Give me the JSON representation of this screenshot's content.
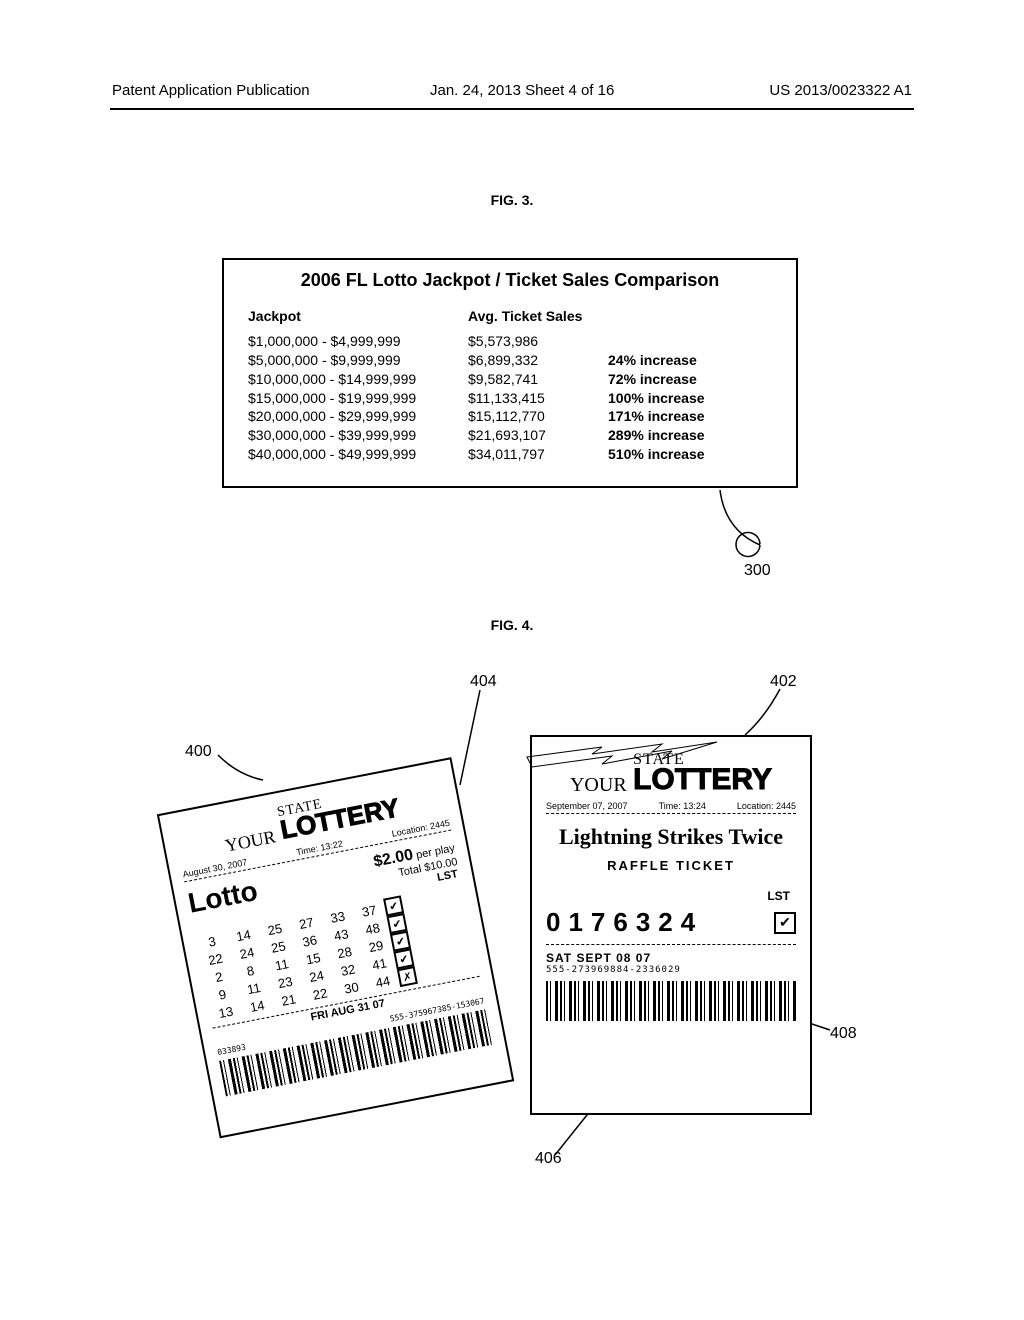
{
  "header": {
    "left": "Patent Application Publication",
    "mid": "Jan. 24, 2013  Sheet 4 of 16",
    "right": "US 2013/0023322 A1"
  },
  "fig3": {
    "label": "FIG. 3.",
    "title": "2006 FL Lotto Jackpot / Ticket Sales Comparison",
    "col1_head": "Jackpot",
    "col2_head": "Avg. Ticket Sales",
    "rows": [
      {
        "j": "$1,000,000 - $4,999,999",
        "s": "$5,573,986",
        "i": ""
      },
      {
        "j": "$5,000,000 - $9,999,999",
        "s": "$6,899,332",
        "i": "24% increase"
      },
      {
        "j": "$10,000,000 - $14,999,999",
        "s": "$9,582,741",
        "i": "72% increase"
      },
      {
        "j": "$15,000,000 - $19,999,999",
        "s": "$11,133,415",
        "i": "100% increase"
      },
      {
        "j": "$20,000,000 - $29,999,999",
        "s": "$15,112,770",
        "i": "171% increase"
      },
      {
        "j": "$30,000,000 - $39,999,999",
        "s": "$21,693,107",
        "i": "289% increase"
      },
      {
        "j": "$40,000,000 - $49,999,999",
        "s": "$34,011,797",
        "i": "510% increase"
      }
    ],
    "ref": "300"
  },
  "fig4": {
    "label": "FIG. 4.",
    "refs": {
      "r400": "400",
      "r402": "402",
      "r404": "404",
      "r406": "406",
      "r408": "408"
    },
    "brand": {
      "your": "YOUR",
      "state": "STATE",
      "lottery": "LOTTERY"
    },
    "raffle": {
      "date": "September 07, 2007",
      "time": "Time: 13:24",
      "loc": "Location: 2445",
      "banner": "Lightning Strikes Twice",
      "label": "RAFFLE TICKET",
      "lst": "LST",
      "number": "0176324",
      "check": "✔",
      "draw": "SAT SEPT 08 07",
      "serial": "555-273969884-2336029"
    },
    "lotto": {
      "date": "August 30, 2007",
      "time": "Time: 13:22",
      "loc": "Location: 2445",
      "name": "Lotto",
      "price": "$2.00",
      "per": "per play",
      "total": "Total $10.00",
      "lst": "LST",
      "rows": [
        [
          "3",
          "14",
          "25",
          "27",
          "33",
          "37",
          "✔"
        ],
        [
          "22",
          "24",
          "25",
          "36",
          "43",
          "48",
          "✔"
        ],
        [
          "2",
          "8",
          "11",
          "15",
          "28",
          "29",
          "✔"
        ],
        [
          "9",
          "11",
          "23",
          "24",
          "32",
          "41",
          "✔"
        ],
        [
          "13",
          "14",
          "21",
          "22",
          "30",
          "44",
          "✗"
        ]
      ],
      "draw": "FRI AUG 31 07",
      "serial_l": "033893",
      "serial_r": "555-375967385-153067"
    }
  }
}
